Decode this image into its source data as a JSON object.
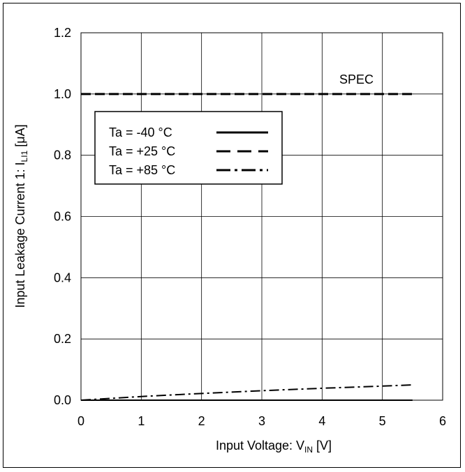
{
  "chart_data": {
    "type": "line",
    "title": "",
    "xlabel": {
      "main": "Input Voltage: V",
      "sub": "IN",
      "unit": " [V]"
    },
    "ylabel": {
      "main": "Input Leakage Current 1: I",
      "sub": "LI1",
      "unit": " [μA]"
    },
    "xlim": [
      0,
      6
    ],
    "ylim": [
      0,
      1.2
    ],
    "xticks": [
      "0",
      "1",
      "2",
      "3",
      "4",
      "5",
      "6"
    ],
    "yticks": [
      "0.0",
      "0.2",
      "0.4",
      "0.6",
      "0.8",
      "1.0",
      "1.2"
    ],
    "grid": true,
    "legend_position": "upper-left",
    "annotation": "SPEC",
    "spec_line": {
      "x": [
        0,
        5.5
      ],
      "y": [
        1.0,
        1.0
      ],
      "style": "dashed",
      "color": "#000000"
    },
    "series": [
      {
        "name": "Ta = -40 °C",
        "style": "solid",
        "color": "#000000",
        "x": [
          0,
          1,
          2,
          3,
          4,
          5,
          5.5
        ],
        "y": [
          0,
          0,
          0,
          0,
          0,
          0,
          0
        ]
      },
      {
        "name": "Ta = +25 °C",
        "style": "dashed",
        "color": "#000000",
        "x": [
          0,
          1,
          2,
          3,
          4,
          5,
          5.5
        ],
        "y": [
          0,
          0,
          0,
          0,
          0,
          0,
          0
        ]
      },
      {
        "name": "Ta = +85 °C",
        "style": "dashdot",
        "color": "#000000",
        "x": [
          0,
          1,
          2,
          3,
          4,
          5,
          5.5
        ],
        "y": [
          0,
          0.012,
          0.022,
          0.031,
          0.039,
          0.046,
          0.05
        ]
      }
    ]
  }
}
